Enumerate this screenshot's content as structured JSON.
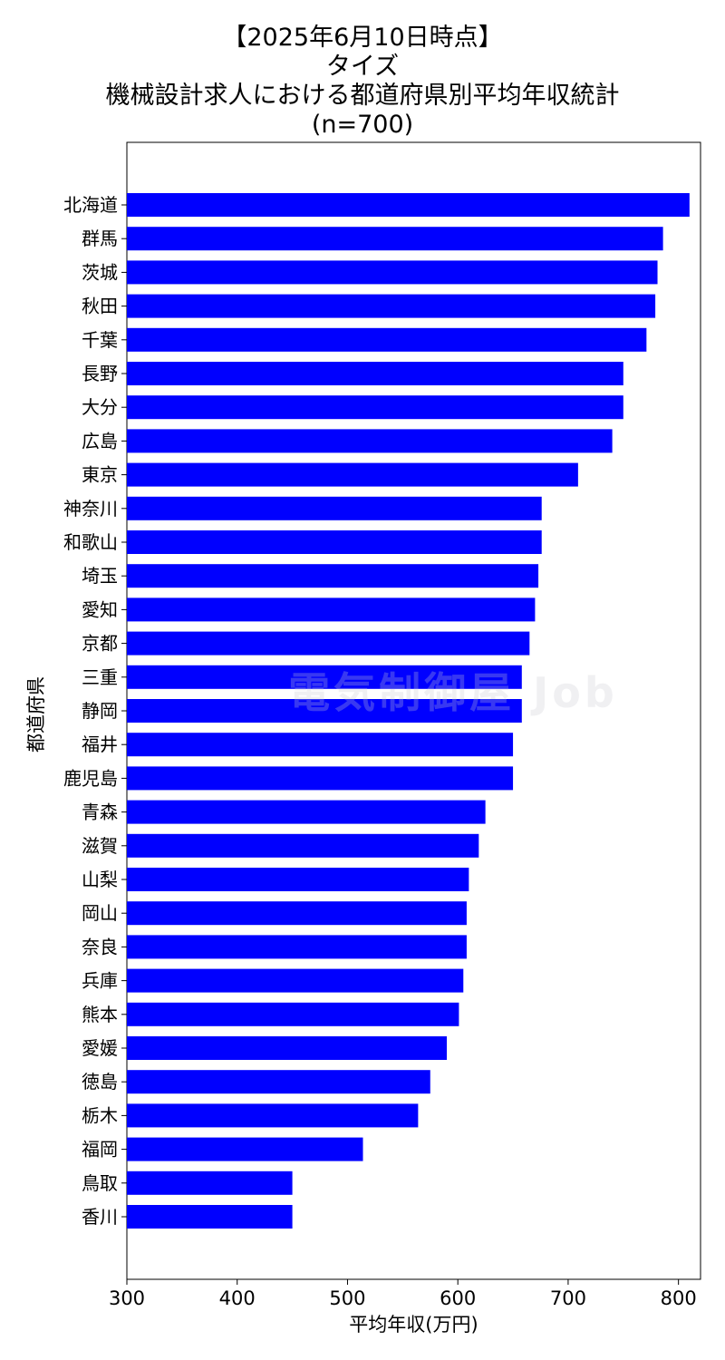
{
  "title_lines": [
    "【2025年6月10日時点】",
    "タイズ",
    "機械設計求人における都道府県別平均年収統計",
    "(n=700)"
  ],
  "watermark": "電気制御屋 Job",
  "colors": {
    "bar": "#0000ff",
    "axis": "#000000",
    "background": "#ffffff"
  },
  "chart_data": {
    "type": "bar",
    "orientation": "horizontal",
    "categories": [
      "北海道",
      "群馬",
      "茨城",
      "秋田",
      "千葉",
      "長野",
      "大分",
      "広島",
      "東京",
      "神奈川",
      "和歌山",
      "埼玉",
      "愛知",
      "京都",
      "三重",
      "静岡",
      "福井",
      "鹿児島",
      "青森",
      "滋賀",
      "山梨",
      "岡山",
      "奈良",
      "兵庫",
      "熊本",
      "愛媛",
      "徳島",
      "栃木",
      "福岡",
      "鳥取",
      "香川"
    ],
    "values": [
      810,
      786,
      781,
      779,
      771,
      750,
      750,
      740,
      709,
      676,
      676,
      673,
      670,
      665,
      658,
      658,
      650,
      650,
      625,
      619,
      610,
      608,
      608,
      605,
      601,
      590,
      575,
      564,
      514,
      450,
      450
    ],
    "xlabel": "平均年収(万円)",
    "ylabel": "都道府県",
    "xlim": [
      300,
      820
    ],
    "xticks": [
      300,
      400,
      500,
      600,
      700,
      800
    ],
    "grid": false,
    "legend": "none"
  }
}
